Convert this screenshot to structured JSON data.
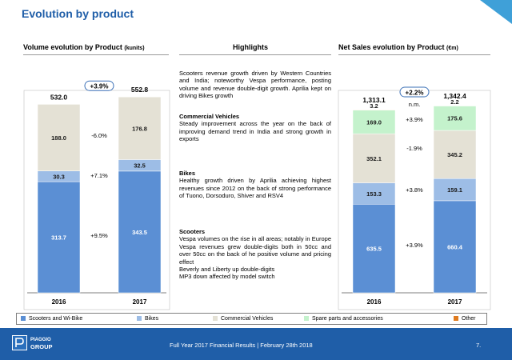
{
  "page": {
    "title": "Evolution by product",
    "footer_text": "Full Year 2017 Financial Results | February 28th 2018",
    "page_number": "7."
  },
  "logo": {
    "name": "PIAGGIO",
    "group": "GROUP"
  },
  "colors": {
    "accent": "#1f5ea8",
    "scooters": "#5b8fd4",
    "bikes": "#9dbde6",
    "commercial": "#e4e1d5",
    "spare": "#c4f2cc",
    "other": "#e07b1f"
  },
  "volume_head": {
    "title": "Volume evolution by Product",
    "unit": "(kunits)"
  },
  "sales_head": {
    "title": "Net Sales evolution by Product",
    "unit": "(€m)"
  },
  "highlights": {
    "title": "Highlights",
    "intro": "Scooters revenue growth driven by Western Countries and India; noteworthy Vespa performance, posting volume and revenue double-digit growth. Aprilia kept on driving Bikes growth",
    "cv_title": "Commercial Vehicles",
    "cv_text": "Steady improvement across the year on the back of improving demand trend in India and strong growth in exports",
    "bikes_title": "Bikes",
    "bikes_text": "Healthy growth driven by Aprilia achieving highest revenues since 2012 on the back of strong performance of Tuono, Dorsoduro, Shiver and RSV4",
    "scooters_title": "Scooters",
    "scooters_text_1": "Vespa volumes on the rise in all areas; notably in Europe Vespa revenues grew double-digits both in 50cc and over 50cc on the back of he positive volume and pricing effect",
    "scooters_text_2": "Beverly and Liberty up double-digits",
    "scooters_text_3": "MP3 down affected by model switch"
  },
  "legend": [
    "Scooters and Wi-Bike",
    "Bikes",
    "Commercial Vehicles",
    "Spare parts and accessories",
    "Other"
  ],
  "chart_data": [
    {
      "type": "bar",
      "stacked": true,
      "title": "Volume evolution by Product (kunits)",
      "categories": [
        "2016",
        "2017"
      ],
      "series": [
        {
          "name": "Scooters and Wi-Bike",
          "values": [
            313.7,
            343.5
          ],
          "labels": [
            "313.7",
            "343.5"
          ],
          "change": "+9.5%"
        },
        {
          "name": "Bikes",
          "values": [
            30.3,
            32.5
          ],
          "labels": [
            "30.3",
            "32.5"
          ],
          "change": "+7.1%"
        },
        {
          "name": "Commercial Vehicles",
          "values": [
            188.0,
            176.8
          ],
          "labels": [
            "188.0",
            "176.8"
          ],
          "change": "-6.0%"
        }
      ],
      "totals": [
        "532.0",
        "552.8"
      ],
      "total_change": "+3.9%",
      "ylim": [
        0,
        560
      ]
    },
    {
      "type": "bar",
      "stacked": true,
      "title": "Net Sales evolution by Product (€m)",
      "categories": [
        "2016",
        "2017"
      ],
      "series": [
        {
          "name": "Scooters and Wi-Bike",
          "values": [
            635.5,
            660.4
          ],
          "labels": [
            "635.5",
            "660.4"
          ],
          "change": "+3.9%"
        },
        {
          "name": "Bikes",
          "values": [
            153.3,
            159.1
          ],
          "labels": [
            "153.3",
            "159.1"
          ],
          "change": "+3.8%"
        },
        {
          "name": "Commercial Vehicles",
          "values": [
            352.1,
            345.2
          ],
          "labels": [
            "352.1",
            "345.2"
          ],
          "change": "-1.9%"
        },
        {
          "name": "Spare parts and accessories",
          "values": [
            169.0,
            175.6
          ],
          "labels": [
            "169.0",
            "175.6"
          ],
          "change": "+3.9%"
        },
        {
          "name": "Other",
          "values": [
            3.2,
            2.2
          ],
          "labels": [
            "3.2",
            "2.2"
          ],
          "change": "n.m."
        }
      ],
      "totals": [
        "1,313.1",
        "1,342.4"
      ],
      "total_change": "+2.2%",
      "ylim": [
        0,
        1360
      ]
    }
  ]
}
